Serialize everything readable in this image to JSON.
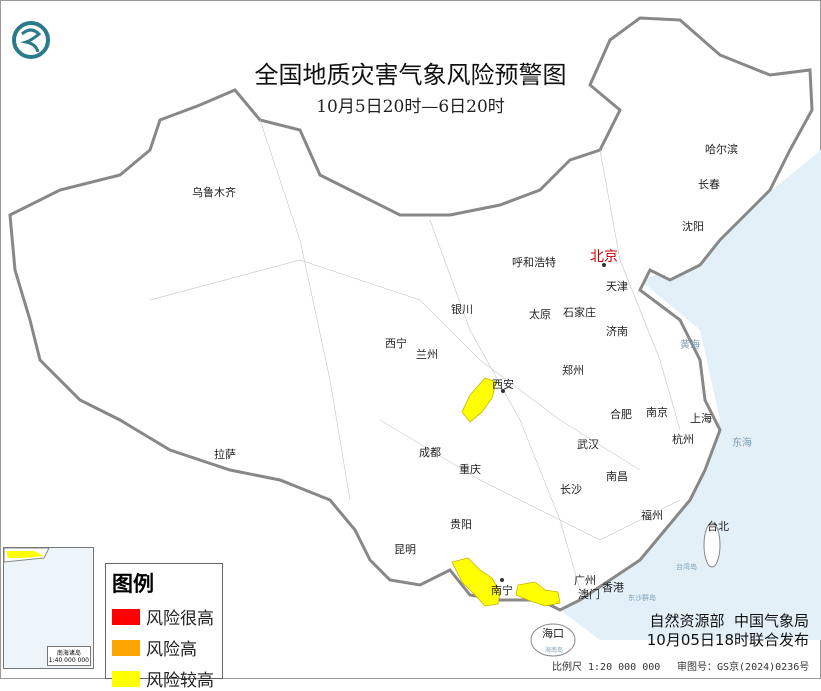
{
  "title": "全国地质灾害气象风险预警图",
  "subtitle": "10月5日20时—6日20时",
  "logo": "cma-dragon-logo",
  "cities": {
    "urumqi": "乌鲁木齐",
    "harbin": "哈尔滨",
    "changchun": "长春",
    "shenyang": "沈阳",
    "beijing": "北京",
    "tianjin": "天津",
    "hohhot": "呼和浩特",
    "shijiazhuang": "石家庄",
    "taiyuan": "太原",
    "jinan": "济南",
    "yinchuan": "银川",
    "xining": "西宁",
    "lanzhou": "兰州",
    "zhengzhou": "郑州",
    "xian": "西安",
    "hefei": "合肥",
    "nanjing": "南京",
    "shanghai": "上海",
    "wuhan": "武汉",
    "hangzhou": "杭州",
    "chengdu": "成都",
    "lhasa": "拉萨",
    "chongqing": "重庆",
    "nanchang": "南昌",
    "changsha": "长沙",
    "fuzhou": "福州",
    "taipei": "台北",
    "guiyang": "贵阳",
    "kunming": "昆明",
    "nanning": "南宁",
    "guangzhou": "广州",
    "macau": "澳门",
    "hongkong": "香港",
    "haikou": "海口"
  },
  "seas": {
    "yellow_sea": "黄海",
    "east_sea": "东海",
    "taiwan_island": "台湾岛",
    "dongsha": "东沙群岛",
    "hainan_island": "海南岛"
  },
  "inset": {
    "label": "南海诸岛",
    "scale": "1:40 000 000"
  },
  "legend": {
    "title": "图例",
    "items": [
      {
        "label": "风险很高",
        "color": "#ff0000"
      },
      {
        "label": "风险高",
        "color": "#ffa500"
      },
      {
        "label": "风险较高",
        "color": "#ffff00"
      }
    ]
  },
  "publisher": {
    "line1": "自然资源部  中国气象局",
    "line2": "10月05日18时联合发布"
  },
  "scale": "比例尺 1:20 000 000",
  "review_no": "审图号：GS京(2024)0236号",
  "colors": {
    "sea": "#e4f0f8",
    "border": "#888888",
    "warning": "#ffff00",
    "capital": "#cc0000"
  }
}
